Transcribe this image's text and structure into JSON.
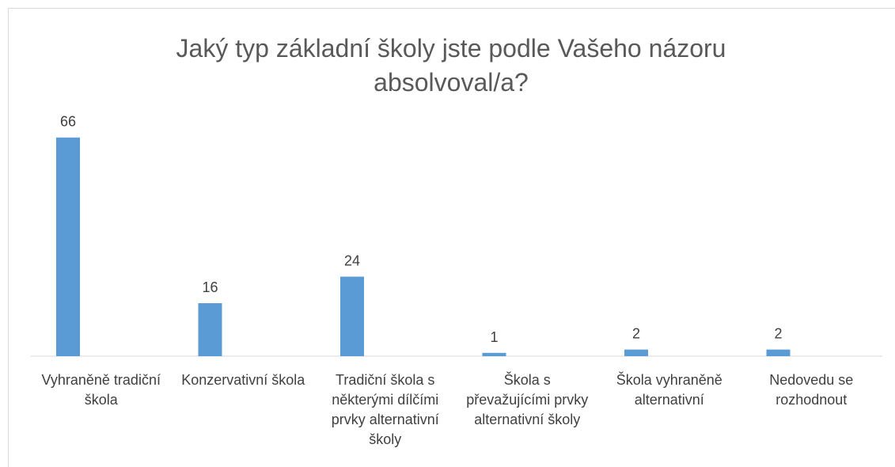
{
  "chart_data": {
    "type": "bar",
    "title": "Jaký typ základní školy jste podle Vašeho názoru absolvoval/a?",
    "categories": [
      "Vyhraněně tradiční škola",
      "Konzervativní škola",
      "Tradiční škola s některými dílčími prvky alternativní školy",
      "Škola s převažujícími prvky alternativní školy",
      "Škola vyhraněně alternativní",
      "Nedovedu se rozhodnout"
    ],
    "values": [
      66,
      16,
      24,
      1,
      2,
      2
    ],
    "color": "#5b9bd5",
    "ylim": [
      0,
      70
    ],
    "grid": false
  }
}
